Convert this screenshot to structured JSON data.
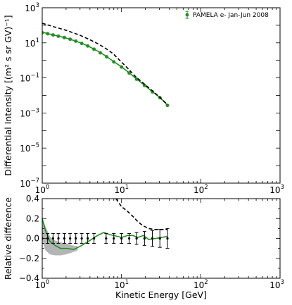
{
  "chart_data": [
    {
      "type": "line",
      "panel": "top",
      "xscale": "log",
      "yscale": "log",
      "xlim": [
        1,
        1000
      ],
      "ylim": [
        1e-07,
        1000
      ],
      "xlabel": "",
      "ylabel": "Differential Intensity [(m² s sr GV)⁻¹]",
      "xticks": [
        {
          "value": 1,
          "base": "10",
          "exp": "0"
        },
        {
          "value": 10,
          "base": "10",
          "exp": "1"
        },
        {
          "value": 100,
          "base": "10",
          "exp": "2"
        },
        {
          "value": 1000,
          "base": "10",
          "exp": "3"
        }
      ],
      "yticks": [
        {
          "value": 1e-07,
          "base": "10",
          "exp": "−7"
        },
        {
          "value": 1e-05,
          "base": "10",
          "exp": "−5"
        },
        {
          "value": 0.001,
          "base": "10",
          "exp": "−3"
        },
        {
          "value": 0.1,
          "base": "10",
          "exp": "−1"
        },
        {
          "value": 10,
          "base": "10",
          "exp": "1"
        },
        {
          "value": 1000,
          "base": "10",
          "exp": "3"
        }
      ],
      "legend": {
        "placement": "top-right",
        "entries": [
          "PAMELA e- Jan-Jun 2008"
        ]
      },
      "series": [
        {
          "name": "PAMELA e- Jan-Jun 2008",
          "style": "points-with-errorbars",
          "color": "#2e8b2e",
          "x": [
            1.0,
            1.17,
            1.37,
            1.6,
            1.9,
            2.25,
            2.65,
            3.15,
            3.75,
            4.5,
            5.4,
            6.5,
            8.0,
            10.0,
            12.5,
            15.5,
            19.5,
            24.5,
            30.5,
            38.0
          ],
          "y": [
            38,
            33,
            28,
            24,
            20,
            16,
            12.5,
            9.3,
            6.6,
            4.3,
            2.7,
            1.6,
            0.82,
            0.42,
            0.19,
            0.085,
            0.037,
            0.016,
            0.0075,
            0.0027
          ]
        },
        {
          "style": "line",
          "color": "#1f8f1f",
          "x": [
            1.0,
            1.17,
            1.37,
            1.6,
            1.9,
            2.25,
            2.65,
            3.15,
            3.75,
            4.5,
            5.4,
            6.5,
            8.0,
            10.0,
            12.5,
            15.5,
            19.5,
            24.5,
            30.5,
            38.0
          ],
          "y": [
            40,
            34,
            28.5,
            24,
            20,
            16,
            12.5,
            9.5,
            6.7,
            4.4,
            2.8,
            1.65,
            0.84,
            0.43,
            0.195,
            0.087,
            0.038,
            0.0165,
            0.0077,
            0.0028
          ]
        },
        {
          "style": "dashed",
          "color": "#000000",
          "x": [
            1.0,
            1.5,
            2.0,
            3.0,
            4.0,
            5.0,
            6.0,
            7.0,
            8.0,
            10.0,
            12.0,
            15.0,
            20.0,
            25.0,
            30.0,
            38.0
          ],
          "y": [
            130,
            75,
            52,
            27,
            15,
            9,
            5.6,
            3.5,
            2.2,
            0.8,
            0.35,
            0.12,
            0.04,
            0.017,
            0.0083,
            0.003
          ]
        }
      ]
    },
    {
      "type": "line",
      "panel": "bottom",
      "xscale": "log",
      "xlim": [
        1,
        1000
      ],
      "ylim": [
        -0.4,
        0.4
      ],
      "xlabel": "Kinetic Energy [GeV]",
      "ylabel": "Relative difference",
      "xticks": [
        {
          "value": 1,
          "base": "10",
          "exp": "0"
        },
        {
          "value": 10,
          "base": "10",
          "exp": "1"
        },
        {
          "value": 100,
          "base": "10",
          "exp": "2"
        },
        {
          "value": 1000,
          "base": "10",
          "exp": "3"
        }
      ],
      "yticks": [
        {
          "value": -0.4,
          "label": "−0.4"
        },
        {
          "value": -0.2,
          "label": "−0.2"
        },
        {
          "value": 0.0,
          "label": "0.0"
        },
        {
          "value": 0.2,
          "label": "0.2"
        },
        {
          "value": 0.4,
          "label": "0.4"
        }
      ],
      "band": {
        "color": "#b5b5b5",
        "x": [
          1.0,
          1.1,
          1.25,
          1.45,
          1.7,
          2.0,
          2.4,
          2.8
        ],
        "upper": [
          0.21,
          0.12,
          0.02,
          -0.02,
          -0.04,
          -0.05,
          -0.07,
          -0.08
        ],
        "lower": [
          -0.03,
          -0.12,
          -0.16,
          -0.17,
          -0.17,
          -0.16,
          -0.14,
          -0.12
        ]
      },
      "series": [
        {
          "style": "line",
          "color": "#1f8f1f",
          "x": [
            1.0,
            1.1,
            1.25,
            1.45,
            1.7,
            2.0,
            2.5,
            3.0,
            4.0,
            5.0,
            6.0,
            7.0,
            8.0,
            10.0,
            12.0,
            14.0,
            16.0,
            19.0,
            22.0,
            27.0,
            32.0,
            38.0
          ],
          "y": [
            0.2,
            0.08,
            -0.03,
            -0.07,
            -0.1,
            -0.1,
            -0.11,
            -0.08,
            -0.02,
            0.03,
            0.06,
            0.04,
            0.03,
            0.01,
            0.03,
            0.03,
            0.01,
            0.03,
            -0.01,
            0.0,
            0.01,
            0.02
          ]
        },
        {
          "style": "points-with-errorbars",
          "color": "#000000",
          "x": [
            1.0,
            1.17,
            1.37,
            1.6,
            1.9,
            2.25,
            2.65,
            3.15,
            3.75,
            4.5,
            6.4,
            8.0,
            10.0,
            12.5,
            15.5,
            19.5,
            24.5,
            30.5,
            38.0
          ],
          "y": [
            0,
            0,
            0,
            0,
            0,
            0,
            0,
            0,
            0,
            0,
            0,
            0,
            0,
            0,
            0,
            0,
            0,
            0,
            0
          ],
          "err": [
            0.05,
            0.05,
            0.05,
            0.05,
            0.05,
            0.05,
            0.05,
            0.05,
            0.05,
            0.05,
            0.05,
            0.05,
            0.05,
            0.05,
            0.06,
            0.07,
            0.08,
            0.09,
            0.1
          ]
        },
        {
          "style": "dashed",
          "color": "#000000",
          "x": [
            8.5,
            10.0,
            12.0,
            14.0,
            16.0,
            18.5,
            22.0,
            26.0,
            31.0,
            38.0
          ],
          "y": [
            0.4,
            0.32,
            0.27,
            0.22,
            0.17,
            0.13,
            0.1,
            0.09,
            0.09,
            0.09
          ]
        }
      ]
    }
  ]
}
